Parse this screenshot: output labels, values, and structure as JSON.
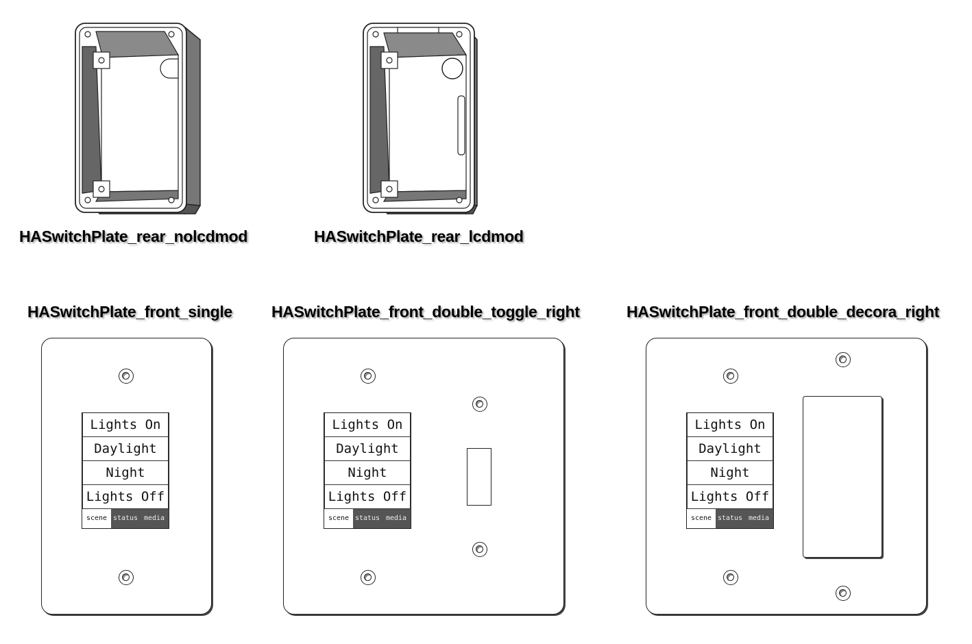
{
  "models": {
    "rear_nolcdmod": {
      "label": "HASwitchPlate_rear_nolcdmod"
    },
    "rear_lcdmod": {
      "label": "HASwitchPlate_rear_lcdmod"
    },
    "front_single": {
      "label": "HASwitchPlate_front_single"
    },
    "front_double_toggle": {
      "label": "HASwitchPlate_front_double_toggle_right"
    },
    "front_double_decora": {
      "label": "HASwitchPlate_front_double_decora_right"
    }
  },
  "lcd": {
    "buttons": [
      "Lights On",
      "Daylight",
      "Night",
      "Lights Off"
    ],
    "tabs": [
      "scene",
      "status",
      "media"
    ],
    "active_tab": "scene"
  },
  "colors": {
    "outline": "#222222",
    "shade": "#7a7a7a",
    "tab_bg": "#555555"
  }
}
